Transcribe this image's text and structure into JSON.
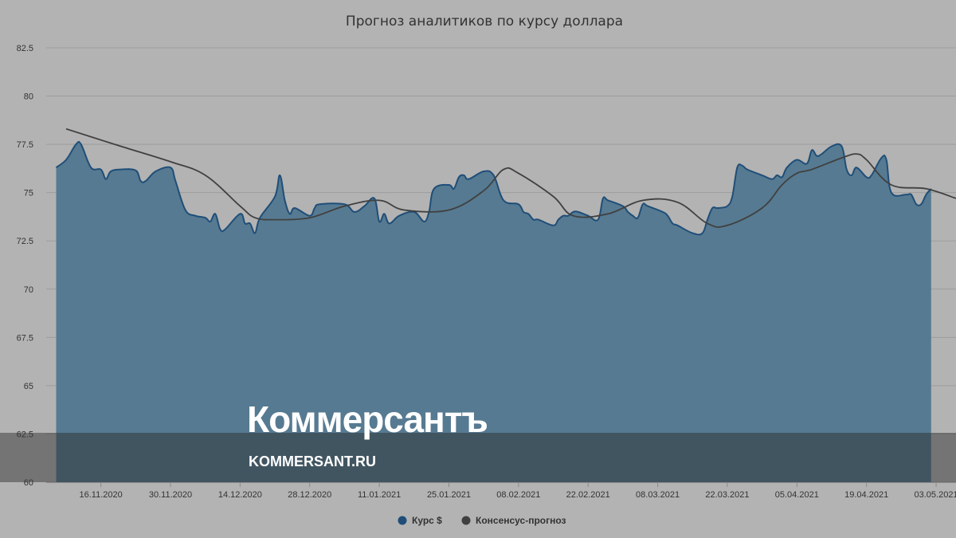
{
  "chart_data": {
    "type": "area",
    "title": "Прогноз аналитиков по курсу доллара",
    "xlabel": "",
    "ylabel": "",
    "ylim": [
      60,
      82.5
    ],
    "y_ticks": [
      "60",
      "62.5",
      "65",
      "67.5",
      "70",
      "72.5",
      "75",
      "77.5",
      "80",
      "82.5"
    ],
    "x_ticks": [
      {
        "date": "2020-11-16",
        "label": "16.11.2020"
      },
      {
        "date": "2020-11-30",
        "label": "30.11.2020"
      },
      {
        "date": "2020-12-14",
        "label": "14.12.2020"
      },
      {
        "date": "2020-12-28",
        "label": "28.12.2020"
      },
      {
        "date": "2021-01-11",
        "label": "11.01.2021"
      },
      {
        "date": "2021-01-25",
        "label": "25.01.2021"
      },
      {
        "date": "2021-02-08",
        "label": "08.02.2021"
      },
      {
        "date": "2021-02-22",
        "label": "22.02.2021"
      },
      {
        "date": "2021-03-08",
        "label": "08.03.2021"
      },
      {
        "date": "2021-03-22",
        "label": "22.03.2021"
      },
      {
        "date": "2021-04-05",
        "label": "05.04.2021"
      },
      {
        "date": "2021-04-19",
        "label": "19.04.2021"
      },
      {
        "date": "2021-05-03",
        "label": "03.05.2021"
      }
    ],
    "x_range": [
      "2020-11-05",
      "2021-05-07"
    ],
    "grid": true,
    "legend_position": "bottom-center",
    "series": [
      {
        "name": "Курс $",
        "kind": "area",
        "color": "#1f4e78",
        "fill_color": "#567a91",
        "points": [
          [
            "2020-11-07",
            76.3
          ],
          [
            "2020-11-09",
            76.7
          ],
          [
            "2020-11-11",
            77.5
          ],
          [
            "2020-11-12",
            77.5
          ],
          [
            "2020-11-14",
            76.3
          ],
          [
            "2020-11-16",
            76.2
          ],
          [
            "2020-11-17",
            75.7
          ],
          [
            "2020-11-18",
            76.1
          ],
          [
            "2020-11-20",
            76.2
          ],
          [
            "2020-11-23",
            76.15
          ],
          [
            "2020-11-24",
            75.6
          ],
          [
            "2020-11-25",
            75.6
          ],
          [
            "2020-11-27",
            76.1
          ],
          [
            "2020-11-30",
            76.3
          ],
          [
            "2020-12-01",
            75.6
          ],
          [
            "2020-12-03",
            74.1
          ],
          [
            "2020-12-05",
            73.8
          ],
          [
            "2020-12-07",
            73.7
          ],
          [
            "2020-12-08",
            73.5
          ],
          [
            "2020-12-09",
            73.9
          ],
          [
            "2020-12-10",
            73.1
          ],
          [
            "2020-12-11",
            73.1
          ],
          [
            "2020-12-14",
            73.9
          ],
          [
            "2020-12-15",
            73.4
          ],
          [
            "2020-12-16",
            73.4
          ],
          [
            "2020-12-17",
            72.9
          ],
          [
            "2020-12-18",
            73.7
          ],
          [
            "2020-12-21",
            74.8
          ],
          [
            "2020-12-22",
            75.9
          ],
          [
            "2020-12-23",
            74.6
          ],
          [
            "2020-12-24",
            73.9
          ],
          [
            "2020-12-25",
            74.2
          ],
          [
            "2020-12-28",
            73.8
          ],
          [
            "2020-12-29",
            74.2
          ],
          [
            "2020-12-30",
            74.4
          ],
          [
            "2021-01-04",
            74.4
          ],
          [
            "2021-01-06",
            74.0
          ],
          [
            "2021-01-08",
            74.3
          ],
          [
            "2021-01-10",
            74.7
          ],
          [
            "2021-01-11",
            73.5
          ],
          [
            "2021-01-12",
            73.9
          ],
          [
            "2021-01-13",
            73.4
          ],
          [
            "2021-01-15",
            73.8
          ],
          [
            "2021-01-18",
            74.0
          ],
          [
            "2021-01-20",
            73.5
          ],
          [
            "2021-01-21",
            74.0
          ],
          [
            "2021-01-22",
            75.2
          ],
          [
            "2021-01-25",
            75.4
          ],
          [
            "2021-01-26",
            75.2
          ],
          [
            "2021-01-27",
            75.8
          ],
          [
            "2021-01-28",
            75.9
          ],
          [
            "2021-01-29",
            75.7
          ],
          [
            "2021-02-01",
            76.1
          ],
          [
            "2021-02-03",
            75.9
          ],
          [
            "2021-02-05",
            74.6
          ],
          [
            "2021-02-08",
            74.4
          ],
          [
            "2021-02-09",
            74.0
          ],
          [
            "2021-02-10",
            73.9
          ],
          [
            "2021-02-11",
            73.6
          ],
          [
            "2021-02-12",
            73.6
          ],
          [
            "2021-02-15",
            73.3
          ],
          [
            "2021-02-16",
            73.6
          ],
          [
            "2021-02-17",
            73.8
          ],
          [
            "2021-02-18",
            73.8
          ],
          [
            "2021-02-19",
            74.0
          ],
          [
            "2021-02-20",
            74.0
          ],
          [
            "2021-02-22",
            73.8
          ],
          [
            "2021-02-24",
            73.6
          ],
          [
            "2021-02-25",
            74.7
          ],
          [
            "2021-02-26",
            74.6
          ],
          [
            "2021-03-01",
            74.3
          ],
          [
            "2021-03-02",
            74.0
          ],
          [
            "2021-03-03",
            73.8
          ],
          [
            "2021-03-04",
            73.7
          ],
          [
            "2021-03-05",
            74.4
          ],
          [
            "2021-03-06",
            74.3
          ],
          [
            "2021-03-09",
            74.0
          ],
          [
            "2021-03-10",
            73.8
          ],
          [
            "2021-03-11",
            73.4
          ],
          [
            "2021-03-12",
            73.3
          ],
          [
            "2021-03-15",
            72.9
          ],
          [
            "2021-03-17",
            72.9
          ],
          [
            "2021-03-18",
            73.6
          ],
          [
            "2021-03-19",
            74.2
          ],
          [
            "2021-03-20",
            74.2
          ],
          [
            "2021-03-22",
            74.3
          ],
          [
            "2021-03-23",
            74.8
          ],
          [
            "2021-03-24",
            76.3
          ],
          [
            "2021-03-25",
            76.4
          ],
          [
            "2021-03-26",
            76.2
          ],
          [
            "2021-03-29",
            75.9
          ],
          [
            "2021-03-31",
            75.7
          ],
          [
            "2021-04-01",
            75.9
          ],
          [
            "2021-04-02",
            75.8
          ],
          [
            "2021-04-03",
            76.3
          ],
          [
            "2021-04-05",
            76.7
          ],
          [
            "2021-04-07",
            76.5
          ],
          [
            "2021-04-08",
            77.2
          ],
          [
            "2021-04-09",
            76.9
          ],
          [
            "2021-04-10",
            77.0
          ],
          [
            "2021-04-12",
            77.4
          ],
          [
            "2021-04-14",
            77.4
          ],
          [
            "2021-04-15",
            76.2
          ],
          [
            "2021-04-16",
            75.9
          ],
          [
            "2021-04-17",
            76.3
          ],
          [
            "2021-04-19",
            75.8
          ],
          [
            "2021-04-20",
            75.9
          ],
          [
            "2021-04-22",
            76.8
          ],
          [
            "2021-04-23",
            76.7
          ],
          [
            "2021-04-24",
            75.0
          ],
          [
            "2021-04-27",
            74.9
          ],
          [
            "2021-04-28",
            74.9
          ],
          [
            "2021-04-29",
            74.4
          ],
          [
            "2021-04-30",
            74.4
          ],
          [
            "2021-05-01",
            74.9
          ],
          [
            "2021-05-02",
            75.2
          ]
        ]
      },
      {
        "name": "Консенсус-прогноз",
        "kind": "line",
        "color": "#404040",
        "points": [
          [
            "2020-11-09",
            78.3
          ],
          [
            "2020-11-20",
            77.4
          ],
          [
            "2020-11-30",
            76.6
          ],
          [
            "2020-12-07",
            75.9
          ],
          [
            "2020-12-14",
            74.3
          ],
          [
            "2020-12-17",
            73.7
          ],
          [
            "2020-12-21",
            73.6
          ],
          [
            "2020-12-28",
            73.7
          ],
          [
            "2021-01-04",
            74.3
          ],
          [
            "2021-01-11",
            74.6
          ],
          [
            "2021-01-16",
            74.1
          ],
          [
            "2021-01-25",
            74.1
          ],
          [
            "2021-02-01",
            75.1
          ],
          [
            "2021-02-05",
            76.2
          ],
          [
            "2021-02-08",
            76.0
          ],
          [
            "2021-02-15",
            74.8
          ],
          [
            "2021-02-19",
            73.8
          ],
          [
            "2021-02-26",
            73.9
          ],
          [
            "2021-03-05",
            74.6
          ],
          [
            "2021-03-12",
            74.5
          ],
          [
            "2021-03-18",
            73.4
          ],
          [
            "2021-03-22",
            73.3
          ],
          [
            "2021-03-29",
            74.2
          ],
          [
            "2021-04-02",
            75.4
          ],
          [
            "2021-04-05",
            76.0
          ],
          [
            "2021-04-08",
            76.2
          ],
          [
            "2021-04-14",
            76.8
          ],
          [
            "2021-04-17",
            77.0
          ],
          [
            "2021-04-19",
            76.7
          ],
          [
            "2021-04-24",
            75.4
          ],
          [
            "2021-05-01",
            75.2
          ],
          [
            "2021-05-07",
            74.7
          ]
        ]
      }
    ]
  },
  "watermark": {
    "brand_name": "Коммерсантъ",
    "url": "KOMMERSANT.RU"
  }
}
